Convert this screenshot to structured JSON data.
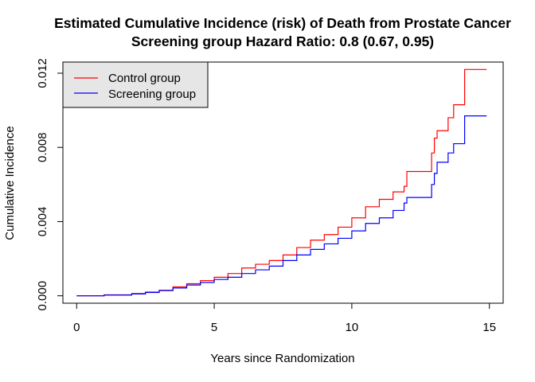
{
  "chart_data": {
    "type": "line",
    "title": "Estimated Cumulative Incidence (risk) of Death from Prostate Cancer",
    "subtitle": "Screening group Hazard Ratio: 0.8 (0.67, 0.95)",
    "xlabel": "Years since Randomization",
    "ylabel": "Cumulative Incidence",
    "xlim": [
      -0.5,
      15.5
    ],
    "ylim": [
      -0.0004,
      0.0126
    ],
    "xticks": [
      0,
      5,
      10,
      15
    ],
    "xtick_labels": [
      "0",
      "5",
      "10",
      "15"
    ],
    "yticks": [
      0.0,
      0.004,
      0.008,
      0.012
    ],
    "ytick_labels": [
      "0.000",
      "0.004",
      "0.008",
      "0.012"
    ],
    "grid": false,
    "legend": {
      "position": "top-left",
      "background": "#e6e6e6"
    },
    "line_style": "step",
    "series": [
      {
        "name": "Control group",
        "color": "#ff0000",
        "x": [
          0,
          1,
          2,
          2.5,
          3,
          3.5,
          4,
          4.5,
          5,
          5.5,
          6,
          6.5,
          7,
          7.5,
          8,
          8.5,
          9,
          9.5,
          10,
          10.5,
          11,
          11.5,
          11.9,
          12.0,
          12.5,
          12.8,
          12.9,
          13.0,
          13.1,
          13.2,
          13.5,
          13.7,
          14.0,
          14.1,
          14.9
        ],
        "y": [
          0.0,
          5e-05,
          0.00012,
          0.0002,
          0.0003,
          0.00048,
          0.00065,
          0.00082,
          0.001,
          0.0012,
          0.0015,
          0.0017,
          0.0019,
          0.0022,
          0.0026,
          0.003,
          0.0033,
          0.0037,
          0.0042,
          0.0048,
          0.0052,
          0.0056,
          0.0059,
          0.0067,
          0.0067,
          0.0067,
          0.0077,
          0.0085,
          0.0089,
          0.0089,
          0.0096,
          0.0103,
          0.0103,
          0.0122,
          0.0122
        ]
      },
      {
        "name": "Screening group",
        "color": "#0000ff",
        "x": [
          0,
          1,
          2,
          2.5,
          3,
          3.5,
          4,
          4.5,
          5,
          5.5,
          6,
          6.5,
          7,
          7.5,
          8,
          8.5,
          9,
          9.5,
          10,
          10.5,
          11,
          11.5,
          11.9,
          12.0,
          12.5,
          12.8,
          12.9,
          13.0,
          13.1,
          13.3,
          13.5,
          13.7,
          14.0,
          14.1,
          14.9
        ],
        "y": [
          0.0,
          4e-05,
          0.0001,
          0.00018,
          0.00028,
          0.00042,
          0.00058,
          0.00072,
          0.00088,
          0.001,
          0.0012,
          0.0014,
          0.0016,
          0.0019,
          0.0022,
          0.0025,
          0.0028,
          0.0031,
          0.0035,
          0.0039,
          0.0042,
          0.0046,
          0.005,
          0.0053,
          0.0053,
          0.0053,
          0.006,
          0.0066,
          0.0072,
          0.0072,
          0.0077,
          0.0082,
          0.0082,
          0.0097,
          0.0097
        ]
      }
    ]
  }
}
